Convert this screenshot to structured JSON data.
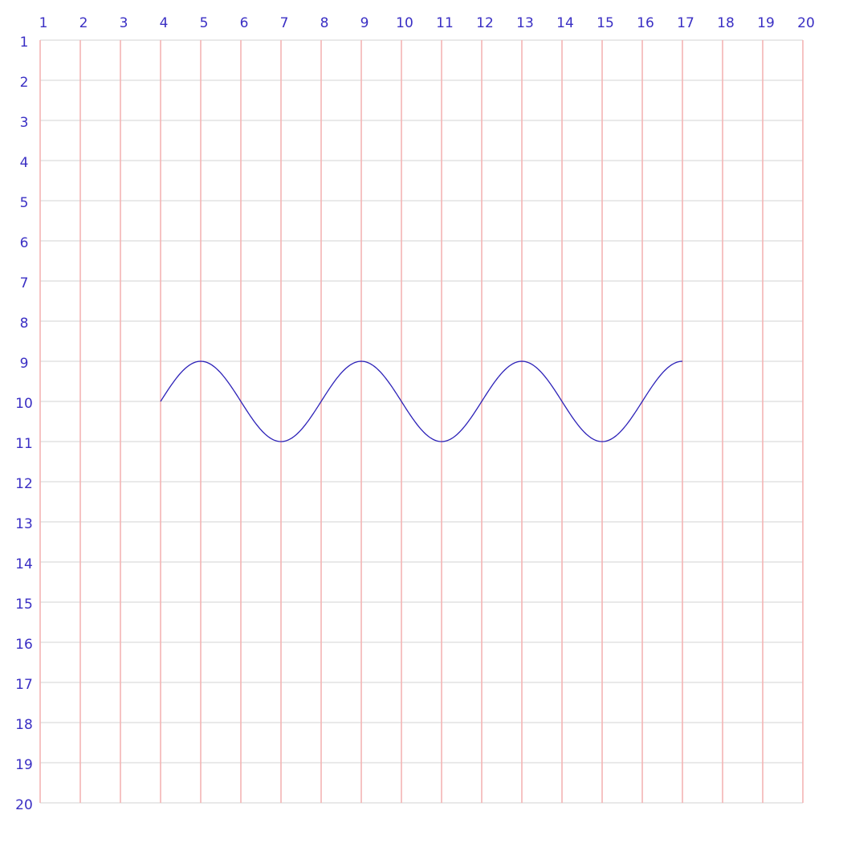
{
  "chart_data": {
    "type": "line",
    "x_ticks": [
      "1",
      "2",
      "3",
      "4",
      "5",
      "6",
      "7",
      "8",
      "9",
      "10",
      "11",
      "12",
      "13",
      "14",
      "15",
      "16",
      "17",
      "18",
      "19",
      "20"
    ],
    "y_ticks": [
      "1",
      "2",
      "3",
      "4",
      "5",
      "6",
      "7",
      "8",
      "9",
      "10",
      "11",
      "12",
      "13",
      "14",
      "15",
      "16",
      "17",
      "18",
      "19",
      "20"
    ],
    "xlim": [
      1,
      20
    ],
    "ylim": [
      1,
      20
    ],
    "y_inverted": true,
    "grid": true,
    "colors": {
      "vertical_grid": "#f4b4b4",
      "horizontal_grid": "#dcdcdc",
      "tick_label": "#3a2fc4",
      "line": "#2d22b8"
    },
    "series": [
      {
        "wave": {
          "x_start": 4,
          "x_end": 17,
          "center_y": 10,
          "amplitude": 1,
          "period": 4,
          "peaks_x": [
            5,
            9,
            13
          ],
          "troughs_x": [
            7,
            11,
            15
          ]
        }
      }
    ]
  }
}
